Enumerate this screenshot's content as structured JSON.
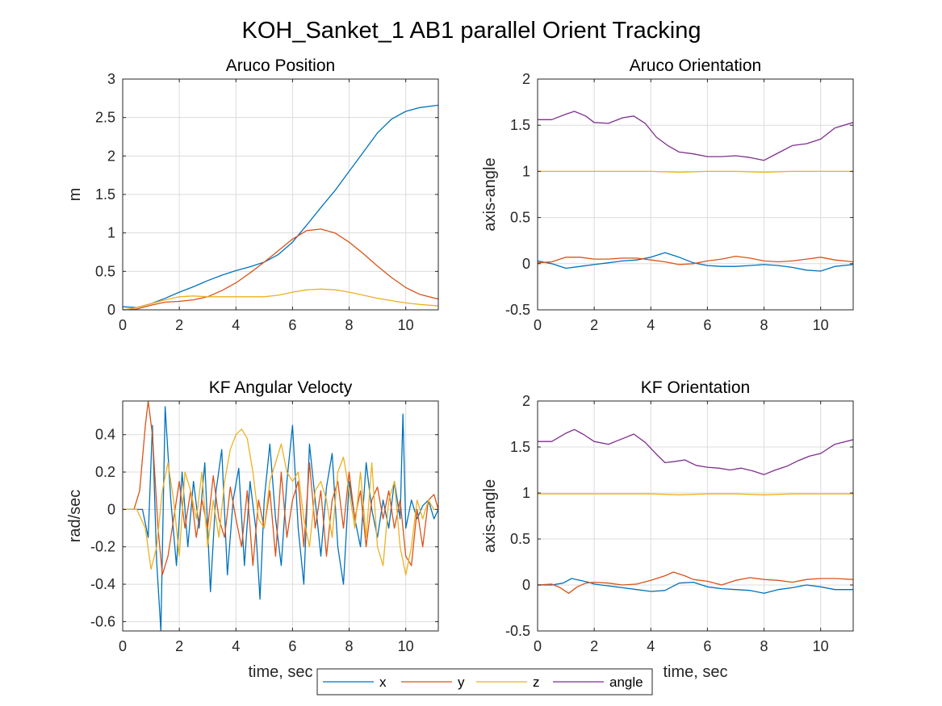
{
  "figure": {
    "title": "KOH_Sanket_1 AB1 parallel Orient Tracking",
    "legend": {
      "entries": [
        "x",
        "y",
        "z",
        "angle"
      ],
      "colors": [
        "#0072BD",
        "#D95319",
        "#EDB120",
        "#7E2F8E"
      ],
      "location": "bottom-center"
    }
  },
  "chart_data": [
    {
      "id": "aruco-position",
      "type": "line",
      "title": "Aruco Position",
      "xlabel": "",
      "ylabel": "m",
      "xlim": [
        0,
        11.15
      ],
      "ylim": [
        0,
        3
      ],
      "xticks": [
        0,
        2,
        4,
        6,
        8,
        10
      ],
      "yticks": [
        0,
        0.5,
        1,
        1.5,
        2,
        2.5,
        3
      ],
      "ytick_labels": [
        "0",
        "0.5",
        "1",
        "1.5",
        "2",
        "2.5",
        "3"
      ],
      "grid": true,
      "series": [
        {
          "name": "x",
          "x": [
            0,
            0.5,
            1,
            1.5,
            2,
            2.5,
            3,
            3.5,
            4,
            4.5,
            5,
            5.5,
            6,
            6.5,
            7,
            7.5,
            8,
            8.5,
            9,
            9.5,
            10,
            10.5,
            11.15
          ],
          "y": [
            0.04,
            0.03,
            0.08,
            0.15,
            0.23,
            0.3,
            0.38,
            0.45,
            0.51,
            0.56,
            0.62,
            0.72,
            0.88,
            1.1,
            1.33,
            1.55,
            1.8,
            2.05,
            2.3,
            2.48,
            2.58,
            2.63,
            2.66
          ]
        },
        {
          "name": "y",
          "x": [
            0,
            0.5,
            1,
            1.5,
            2,
            2.5,
            3,
            3.5,
            4,
            4.5,
            5,
            5.5,
            6,
            6.5,
            7,
            7.5,
            8,
            8.5,
            9,
            9.5,
            10,
            10.5,
            11.15
          ],
          "y": [
            0.0,
            0.01,
            0.06,
            0.1,
            0.11,
            0.13,
            0.17,
            0.25,
            0.35,
            0.48,
            0.62,
            0.77,
            0.92,
            1.03,
            1.05,
            1.0,
            0.88,
            0.73,
            0.57,
            0.42,
            0.29,
            0.2,
            0.14
          ]
        },
        {
          "name": "z",
          "x": [
            0,
            0.5,
            1,
            1.5,
            2,
            2.5,
            3,
            3.5,
            4,
            4.5,
            5,
            5.5,
            6,
            6.5,
            7,
            7.5,
            8,
            8.5,
            9,
            9.5,
            10,
            10.5,
            11.15
          ],
          "y": [
            0.0,
            0.03,
            0.08,
            0.13,
            0.17,
            0.18,
            0.17,
            0.17,
            0.17,
            0.17,
            0.17,
            0.19,
            0.23,
            0.26,
            0.27,
            0.26,
            0.23,
            0.19,
            0.15,
            0.12,
            0.09,
            0.07,
            0.05
          ]
        }
      ]
    },
    {
      "id": "aruco-orientation",
      "type": "line",
      "title": "Aruco Orientation",
      "xlabel": "",
      "ylabel": "axis-angle",
      "xlim": [
        0,
        11.15
      ],
      "ylim": [
        -0.5,
        2
      ],
      "xticks": [
        0,
        2,
        4,
        6,
        8,
        10
      ],
      "yticks": [
        -0.5,
        0,
        0.5,
        1,
        1.5,
        2
      ],
      "ytick_labels": [
        "-0.5",
        "0",
        "0.5",
        "1",
        "1.5",
        "2"
      ],
      "grid": true,
      "series": [
        {
          "name": "x",
          "x": [
            0,
            0.5,
            1,
            1.5,
            2,
            2.5,
            3,
            3.5,
            4,
            4.5,
            5,
            5.5,
            6,
            6.5,
            7,
            7.5,
            8,
            8.5,
            9,
            9.5,
            10,
            10.5,
            11.15
          ],
          "y": [
            0.03,
            0.0,
            -0.05,
            -0.03,
            -0.01,
            0.01,
            0.03,
            0.04,
            0.07,
            0.12,
            0.07,
            0.01,
            -0.02,
            -0.03,
            -0.03,
            -0.02,
            -0.01,
            -0.02,
            -0.04,
            -0.07,
            -0.08,
            -0.03,
            -0.01
          ]
        },
        {
          "name": "y",
          "x": [
            0,
            0.5,
            1,
            1.5,
            2,
            2.5,
            3,
            3.5,
            4,
            4.5,
            5,
            5.5,
            6,
            6.5,
            7,
            7.5,
            8,
            8.5,
            9,
            9.5,
            10,
            10.5,
            11.15
          ],
          "y": [
            0.01,
            0.02,
            0.07,
            0.07,
            0.05,
            0.05,
            0.06,
            0.06,
            0.04,
            0.02,
            -0.01,
            0.0,
            0.03,
            0.05,
            0.08,
            0.06,
            0.03,
            0.02,
            0.03,
            0.05,
            0.07,
            0.04,
            0.02
          ]
        },
        {
          "name": "z",
          "x": [
            0,
            1,
            2,
            3,
            4,
            5,
            6,
            7,
            8,
            9,
            10,
            11.15
          ],
          "y": [
            1.0,
            1.0,
            1.0,
            1.0,
            1.0,
            0.99,
            1.0,
            1.0,
            0.99,
            1.0,
            1.0,
            1.0
          ]
        },
        {
          "name": "angle",
          "x": [
            0,
            0.5,
            1,
            1.3,
            1.7,
            2,
            2.5,
            3,
            3.4,
            3.8,
            4.2,
            4.6,
            5,
            5.5,
            6,
            6.5,
            7,
            7.5,
            8,
            8.5,
            9,
            9.5,
            10,
            10.5,
            11.15
          ],
          "y": [
            1.56,
            1.56,
            1.62,
            1.65,
            1.6,
            1.53,
            1.52,
            1.58,
            1.6,
            1.52,
            1.37,
            1.28,
            1.21,
            1.19,
            1.16,
            1.16,
            1.17,
            1.15,
            1.12,
            1.2,
            1.28,
            1.3,
            1.35,
            1.47,
            1.53
          ]
        }
      ]
    },
    {
      "id": "kf-angular-velocity",
      "type": "line",
      "title": "KF Angular Velocty",
      "xlabel": "time, sec",
      "ylabel": "rad/sec",
      "xlim": [
        0,
        11.15
      ],
      "ylim": [
        -0.65,
        0.58
      ],
      "xticks": [
        0,
        2,
        4,
        6,
        8,
        10
      ],
      "yticks": [
        -0.6,
        -0.4,
        -0.2,
        0,
        0.2,
        0.4
      ],
      "ytick_labels": [
        "-0.6",
        "-0.4",
        "-0.2",
        "0",
        "0.2",
        "0.4"
      ],
      "grid": true,
      "series": [
        {
          "name": "x",
          "x": [
            0,
            0.4,
            0.7,
            0.9,
            1.05,
            1.2,
            1.35,
            1.5,
            1.7,
            1.9,
            2.1,
            2.3,
            2.5,
            2.7,
            2.9,
            3.1,
            3.3,
            3.5,
            3.7,
            3.9,
            4.1,
            4.3,
            4.5,
            4.7,
            4.85,
            5.0,
            5.2,
            5.4,
            5.6,
            5.8,
            6.0,
            6.2,
            6.4,
            6.6,
            6.8,
            7.0,
            7.2,
            7.4,
            7.6,
            7.8,
            8.0,
            8.2,
            8.4,
            8.6,
            8.8,
            9.0,
            9.2,
            9.4,
            9.6,
            9.8,
            9.9,
            10.0,
            10.2,
            10.4,
            10.6,
            10.8,
            11.0,
            11.15
          ],
          "y": [
            0.0,
            0.0,
            0.0,
            -0.15,
            0.45,
            -0.28,
            -0.65,
            0.55,
            0.05,
            -0.3,
            0.2,
            -0.2,
            0.15,
            -0.1,
            0.25,
            -0.44,
            0.1,
            0.32,
            -0.35,
            0.05,
            0.22,
            -0.3,
            0.15,
            -0.1,
            -0.48,
            0.05,
            0.35,
            -0.05,
            -0.3,
            0.15,
            0.45,
            -0.1,
            -0.4,
            0.35,
            0.05,
            -0.25,
            0.12,
            0.3,
            -0.2,
            -0.4,
            0.15,
            -0.05,
            -0.2,
            0.25,
            0.0,
            -0.15,
            0.05,
            -0.1,
            0.15,
            -0.05,
            0.51,
            -0.1,
            0.05,
            -0.05,
            0.02,
            0.05,
            -0.05,
            0.0
          ]
        },
        {
          "name": "y",
          "x": [
            0,
            0.4,
            0.6,
            0.8,
            0.9,
            1.05,
            1.25,
            1.4,
            1.6,
            1.8,
            2.0,
            2.2,
            2.4,
            2.6,
            2.8,
            3.0,
            3.2,
            3.4,
            3.6,
            3.8,
            4.0,
            4.2,
            4.4,
            4.6,
            4.8,
            5.0,
            5.2,
            5.4,
            5.6,
            5.8,
            6.0,
            6.2,
            6.4,
            6.6,
            6.8,
            7.0,
            7.2,
            7.4,
            7.6,
            7.8,
            8.0,
            8.2,
            8.4,
            8.6,
            8.8,
            9.0,
            9.2,
            9.4,
            9.6,
            9.8,
            10.0,
            10.2,
            10.4,
            10.6,
            10.8,
            11.0,
            11.15
          ],
          "y": [
            0.0,
            0.0,
            0.1,
            0.45,
            0.58,
            0.4,
            -0.1,
            -0.35,
            -0.25,
            -0.05,
            0.15,
            -0.1,
            0.1,
            -0.15,
            0.05,
            -0.1,
            0.18,
            -0.05,
            -0.15,
            0.12,
            -0.05,
            -0.2,
            0.1,
            -0.3,
            0.05,
            -0.1,
            0.1,
            -0.25,
            0.2,
            -0.15,
            0.05,
            0.15,
            -0.2,
            0.25,
            -0.1,
            0.1,
            -0.25,
            0.05,
            0.15,
            -0.1,
            0.2,
            -0.05,
            0.1,
            -0.2,
            0.05,
            0.12,
            -0.05,
            0.1,
            -0.1,
            0.05,
            -0.25,
            -0.3,
            0.0,
            -0.2,
            0.05,
            0.08,
            0.0
          ]
        },
        {
          "name": "z",
          "x": [
            0,
            0.5,
            0.8,
            1.0,
            1.2,
            1.4,
            1.6,
            1.8,
            2.0,
            2.2,
            2.4,
            2.6,
            2.8,
            3.0,
            3.2,
            3.4,
            3.6,
            3.8,
            4.0,
            4.2,
            4.4,
            4.6,
            4.8,
            5.0,
            5.2,
            5.4,
            5.6,
            5.8,
            6.0,
            6.2,
            6.4,
            6.6,
            6.8,
            7.0,
            7.2,
            7.4,
            7.6,
            7.8,
            8.0,
            8.2,
            8.4,
            8.6,
            8.8,
            9.0,
            9.2,
            9.4,
            9.6,
            9.8,
            10.0,
            10.2,
            10.4,
            10.6,
            10.8,
            11.0,
            11.15
          ],
          "y": [
            0.0,
            0.0,
            -0.1,
            -0.32,
            -0.2,
            0.1,
            0.25,
            0.05,
            -0.25,
            0.2,
            0.1,
            -0.05,
            0.2,
            -0.2,
            0.05,
            -0.15,
            0.15,
            0.32,
            0.4,
            0.43,
            0.38,
            0.2,
            -0.05,
            -0.1,
            0.15,
            0.25,
            0.35,
            0.2,
            0.15,
            0.2,
            -0.05,
            -0.2,
            0.1,
            0.15,
            0.05,
            -0.15,
            0.2,
            0.28,
            0.1,
            -0.1,
            0.2,
            -0.15,
            0.25,
            -0.2,
            -0.3,
            0.05,
            0.15,
            -0.2,
            -0.35,
            -0.2,
            0.05,
            -0.05,
            0.05,
            0.0,
            0.0
          ]
        }
      ]
    },
    {
      "id": "kf-orientation",
      "type": "line",
      "title": "KF Orientation",
      "xlabel": "time, sec",
      "ylabel": "axis-angle",
      "xlim": [
        0,
        11.15
      ],
      "ylim": [
        -0.5,
        2
      ],
      "xticks": [
        0,
        2,
        4,
        6,
        8,
        10
      ],
      "yticks": [
        -0.5,
        0,
        0.5,
        1,
        1.5,
        2
      ],
      "ytick_labels": [
        "-0.5",
        "0",
        "0.5",
        "1",
        "1.5",
        "2"
      ],
      "grid": true,
      "series": [
        {
          "name": "x",
          "x": [
            0,
            0.5,
            0.9,
            1.2,
            1.5,
            1.8,
            2,
            2.5,
            3,
            3.5,
            4,
            4.5,
            5,
            5.5,
            6,
            6.5,
            7,
            7.5,
            8,
            8.5,
            9,
            9.5,
            10,
            10.5,
            11.15
          ],
          "y": [
            0.0,
            0.0,
            0.02,
            0.07,
            0.05,
            0.03,
            0.01,
            -0.01,
            -0.03,
            -0.05,
            -0.07,
            -0.06,
            0.02,
            0.03,
            -0.02,
            -0.04,
            -0.05,
            -0.06,
            -0.09,
            -0.05,
            -0.03,
            0.0,
            -0.02,
            -0.05,
            -0.05
          ]
        },
        {
          "name": "y",
          "x": [
            0,
            0.5,
            0.8,
            1.1,
            1.4,
            1.7,
            2,
            2.5,
            3,
            3.5,
            4,
            4.5,
            4.8,
            5.2,
            5.5,
            6,
            6.5,
            7,
            7.5,
            8,
            8.5,
            9,
            9.5,
            10,
            10.5,
            11.15
          ],
          "y": [
            0.0,
            0.01,
            -0.03,
            -0.09,
            -0.02,
            0.02,
            0.03,
            0.02,
            0.0,
            0.01,
            0.05,
            0.1,
            0.14,
            0.1,
            0.06,
            0.04,
            0.0,
            0.05,
            0.08,
            0.06,
            0.05,
            0.03,
            0.06,
            0.07,
            0.07,
            0.06
          ]
        },
        {
          "name": "z",
          "x": [
            0,
            1,
            2,
            3,
            4,
            5,
            6,
            7,
            8,
            9,
            10,
            11.15
          ],
          "y": [
            0.99,
            0.99,
            0.99,
            0.99,
            0.99,
            0.98,
            0.99,
            0.99,
            0.98,
            0.99,
            0.99,
            0.99
          ]
        },
        {
          "name": "angle",
          "x": [
            0,
            0.5,
            1,
            1.3,
            1.6,
            2,
            2.5,
            3,
            3.4,
            3.8,
            4.2,
            4.5,
            4.8,
            5.2,
            5.6,
            6,
            6.4,
            6.8,
            7.2,
            7.6,
            8,
            8.4,
            8.8,
            9.2,
            9.6,
            10,
            10.5,
            11.15
          ],
          "y": [
            1.56,
            1.56,
            1.65,
            1.69,
            1.64,
            1.56,
            1.53,
            1.59,
            1.64,
            1.55,
            1.42,
            1.33,
            1.34,
            1.36,
            1.3,
            1.28,
            1.27,
            1.25,
            1.27,
            1.24,
            1.2,
            1.25,
            1.29,
            1.35,
            1.4,
            1.43,
            1.53,
            1.58
          ]
        }
      ]
    }
  ]
}
